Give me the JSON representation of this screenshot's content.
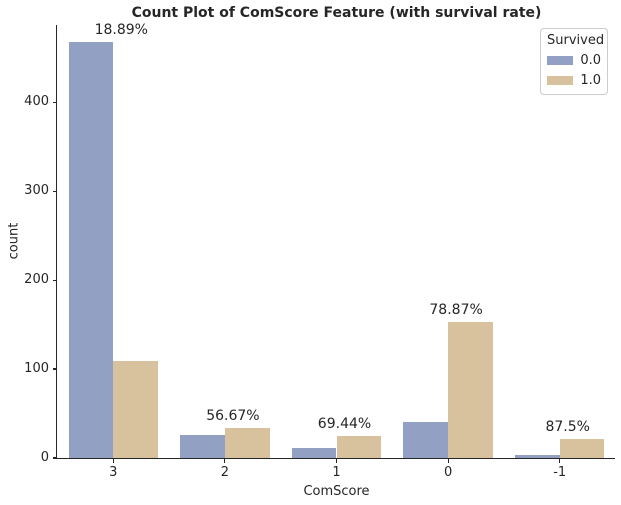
{
  "figure_title": "Count Plot of ComScore Feature (with survival rate)",
  "legend": {
    "title": "Survived",
    "entries": [
      {
        "label": "0.0",
        "color": "#92A0C4"
      },
      {
        "label": "1.0",
        "color": "#D8C19D"
      }
    ]
  },
  "colors": {
    "bar_survived_0": "#92A0C4",
    "bar_survived_1": "#D8C19D",
    "text": "#262626",
    "spine": "#262626",
    "legend_border": "#cccccc",
    "background": "#ffffff"
  },
  "chart_data": {
    "type": "bar",
    "title": "Count Plot of ComScore Feature (with survival rate)",
    "xlabel": "ComScore",
    "ylabel": "count",
    "categories": [
      "3",
      "2",
      "1",
      "0",
      "-1"
    ],
    "series": [
      {
        "name": "0.0",
        "color": "#92A0C4",
        "values": [
          468,
          26,
          11,
          41,
          3
        ]
      },
      {
        "name": "1.0",
        "color": "#D8C19D",
        "values": [
          109,
          34,
          25,
          153,
          21
        ]
      }
    ],
    "annotations": [
      {
        "category": "3",
        "label": "18.89%"
      },
      {
        "category": "2",
        "label": "56.67%"
      },
      {
        "category": "1",
        "label": "69.44%"
      },
      {
        "category": "0",
        "label": "78.87%"
      },
      {
        "category": "-1",
        "label": "87.5%"
      }
    ],
    "yticks": [
      0,
      100,
      200,
      300,
      400
    ],
    "ylim": [
      0,
      487
    ],
    "grid": false,
    "legend_title": "Survived",
    "legend_position": "upper right",
    "bar_group_width": 0.8
  }
}
